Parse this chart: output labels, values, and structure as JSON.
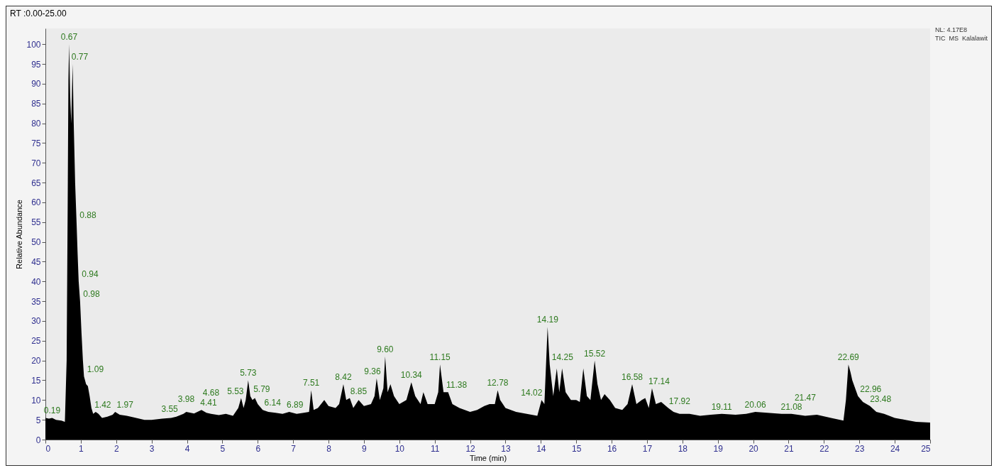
{
  "chart_data": {
    "type": "area",
    "xlabel": "Time (min)",
    "ylabel": "Relative Abundance",
    "xlim": [
      0,
      25
    ],
    "xticks": [
      0,
      1,
      2,
      3,
      4,
      5,
      6,
      7,
      8,
      9,
      10,
      11,
      12,
      13,
      14,
      15,
      16,
      17,
      18,
      19,
      20,
      21,
      22,
      23,
      24,
      25
    ],
    "ylim": [
      0,
      104
    ],
    "yticks": [
      0,
      5,
      10,
      15,
      20,
      25,
      30,
      35,
      40,
      45,
      50,
      55,
      60,
      65,
      70,
      75,
      80,
      85,
      90,
      95,
      100
    ],
    "x": [
      0,
      0.1,
      0.19,
      0.3,
      0.45,
      0.55,
      0.6,
      0.63,
      0.65,
      0.67,
      0.7,
      0.73,
      0.77,
      0.8,
      0.84,
      0.88,
      0.91,
      0.94,
      0.98,
      1.02,
      1.06,
      1.09,
      1.15,
      1.2,
      1.25,
      1.3,
      1.35,
      1.42,
      1.5,
      1.6,
      1.75,
      1.9,
      1.97,
      2.1,
      2.3,
      2.5,
      2.8,
      3.0,
      3.3,
      3.55,
      3.7,
      3.9,
      3.98,
      4.2,
      4.41,
      4.55,
      4.68,
      4.9,
      5.1,
      5.3,
      5.45,
      5.53,
      5.6,
      5.66,
      5.73,
      5.79,
      5.85,
      5.92,
      6.0,
      6.14,
      6.3,
      6.5,
      6.7,
      6.89,
      7.1,
      7.3,
      7.45,
      7.51,
      7.58,
      7.7,
      7.88,
      8.0,
      8.2,
      8.3,
      8.42,
      8.5,
      8.6,
      8.7,
      8.85,
      9.0,
      9.2,
      9.3,
      9.36,
      9.45,
      9.55,
      9.6,
      9.67,
      9.75,
      9.85,
      10.0,
      10.2,
      10.34,
      10.45,
      10.6,
      10.68,
      10.8,
      11.0,
      11.1,
      11.15,
      11.25,
      11.38,
      11.5,
      11.7,
      12.0,
      12.2,
      12.4,
      12.55,
      12.7,
      12.78,
      12.85,
      13.0,
      13.3,
      13.6,
      13.9,
      14.02,
      14.1,
      14.19,
      14.25,
      14.35,
      14.45,
      14.52,
      14.6,
      14.7,
      14.85,
      15.0,
      15.1,
      15.2,
      15.3,
      15.4,
      15.52,
      15.6,
      15.7,
      15.8,
      15.95,
      16.1,
      16.3,
      16.45,
      16.58,
      16.7,
      16.85,
      16.95,
      17.05,
      17.14,
      17.25,
      17.4,
      17.6,
      17.75,
      17.92,
      18.2,
      18.5,
      18.8,
      19.11,
      19.5,
      19.8,
      20.06,
      20.4,
      20.8,
      21.08,
      21.47,
      21.8,
      22.2,
      22.55,
      22.62,
      22.69,
      22.75,
      22.8,
      22.96,
      23.1,
      23.3,
      23.48,
      23.7,
      24.0,
      24.3,
      24.6,
      25.0
    ],
    "series": [
      {
        "color": "#000000",
        "values": [
          5.5,
          5.3,
          5.5,
          5.0,
          4.8,
          4.5,
          20,
          60,
          91,
          100,
          87,
          80,
          95,
          80,
          65,
          55,
          47,
          40,
          35,
          27,
          20,
          16,
          14,
          13.5,
          11,
          8,
          6.5,
          7,
          6.5,
          5.5,
          5.8,
          6.3,
          7,
          6.3,
          6,
          5.6,
          5,
          5,
          5.3,
          5.5,
          5.8,
          6.5,
          7,
          6.6,
          7.5,
          6.8,
          6.5,
          6.2,
          6.5,
          6,
          8,
          10.5,
          8,
          10,
          15,
          11,
          10,
          10.5,
          9,
          7.5,
          7,
          6.8,
          6.5,
          7,
          6.5,
          6.8,
          7,
          12.5,
          7.5,
          8,
          10,
          8.5,
          8,
          9,
          14,
          10,
          10.5,
          8,
          10,
          8.5,
          9,
          11,
          15.5,
          10,
          13,
          21,
          12,
          14,
          11,
          9,
          10,
          14.5,
          11,
          9,
          12,
          9,
          9,
          12,
          19,
          12,
          12,
          9,
          8,
          7,
          7.5,
          8.5,
          9,
          9,
          12.5,
          10,
          8,
          7,
          6.5,
          6,
          10,
          9,
          28.5,
          19,
          11,
          18,
          12,
          18,
          12,
          10,
          10,
          9.5,
          18,
          11,
          10,
          20,
          14,
          10,
          11.5,
          10,
          8,
          7.5,
          9,
          14,
          9,
          10,
          10.5,
          8,
          13,
          9,
          9.5,
          8,
          7,
          6.5,
          6.5,
          6,
          6.3,
          6.5,
          6.3,
          6.5,
          7,
          6.8,
          6.5,
          6.5,
          6,
          6.3,
          5.5,
          4.8,
          10,
          19,
          17,
          15,
          11,
          9.5,
          8.5,
          7,
          6.5,
          5.5,
          5,
          4.5,
          4.3
        ]
      }
    ],
    "annotations": [
      "RT :0.00-25.00",
      "NL: 4.17E8",
      "TIC  MS  Kalalawit",
      {
        "text": "0.19",
        "x": 0.19,
        "y": 5.5
      },
      {
        "text": "0.67",
        "x": 0.67,
        "y": 100
      },
      {
        "text": "0.77",
        "x": 0.77,
        "y": 95
      },
      {
        "text": "0.88",
        "x": 0.88,
        "y": 55
      },
      {
        "text": "0.94",
        "x": 0.94,
        "y": 40
      },
      {
        "text": "0.98",
        "x": 0.98,
        "y": 35
      },
      {
        "text": "1.09",
        "x": 1.09,
        "y": 16
      },
      {
        "text": "1.42",
        "x": 1.42,
        "y": 7
      },
      {
        "text": "1.97",
        "x": 1.97,
        "y": 7
      },
      {
        "text": "3.55",
        "x": 3.55,
        "y": 5.5
      },
      {
        "text": "3.98",
        "x": 3.98,
        "y": 7
      },
      {
        "text": "4.41",
        "x": 4.41,
        "y": 7.5
      },
      {
        "text": "4.68",
        "x": 4.68,
        "y": 6.5
      },
      {
        "text": "5.53",
        "x": 5.53,
        "y": 10.5
      },
      {
        "text": "5.73",
        "x": 5.73,
        "y": 15
      },
      {
        "text": "5.79",
        "x": 5.79,
        "y": 11
      },
      {
        "text": "6.14",
        "x": 6.14,
        "y": 7.5
      },
      {
        "text": "6.89",
        "x": 6.89,
        "y": 7
      },
      {
        "text": "7.51",
        "x": 7.51,
        "y": 12.5
      },
      {
        "text": "8.42",
        "x": 8.42,
        "y": 14
      },
      {
        "text": "8.85",
        "x": 8.85,
        "y": 10
      },
      {
        "text": "9.36",
        "x": 9.36,
        "y": 15.5
      },
      {
        "text": "9.60",
        "x": 9.6,
        "y": 21
      },
      {
        "text": "10.34",
        "x": 10.34,
        "y": 14.5
      },
      {
        "text": "11.15",
        "x": 11.15,
        "y": 19
      },
      {
        "text": "11.38",
        "x": 11.38,
        "y": 12
      },
      {
        "text": "12.78",
        "x": 12.78,
        "y": 12.5
      },
      {
        "text": "14.02",
        "x": 14.02,
        "y": 10
      },
      {
        "text": "14.19",
        "x": 14.19,
        "y": 28.5
      },
      {
        "text": "14.25",
        "x": 14.25,
        "y": 19
      },
      {
        "text": "15.52",
        "x": 15.52,
        "y": 20
      },
      {
        "text": "16.58",
        "x": 16.58,
        "y": 14
      },
      {
        "text": "17.14",
        "x": 17.14,
        "y": 13
      },
      {
        "text": "17.92",
        "x": 17.92,
        "y": 6.5
      },
      {
        "text": "19.11",
        "x": 19.11,
        "y": 6.5
      },
      {
        "text": "20.06",
        "x": 20.06,
        "y": 7
      },
      {
        "text": "21.08",
        "x": 21.08,
        "y": 6.5
      },
      {
        "text": "21.47",
        "x": 21.47,
        "y": 6
      },
      {
        "text": "22.69",
        "x": 22.69,
        "y": 19
      },
      {
        "text": "22.96",
        "x": 22.96,
        "y": 11
      },
      {
        "text": "23.48",
        "x": 23.48,
        "y": 7
      }
    ],
    "grid": false
  }
}
